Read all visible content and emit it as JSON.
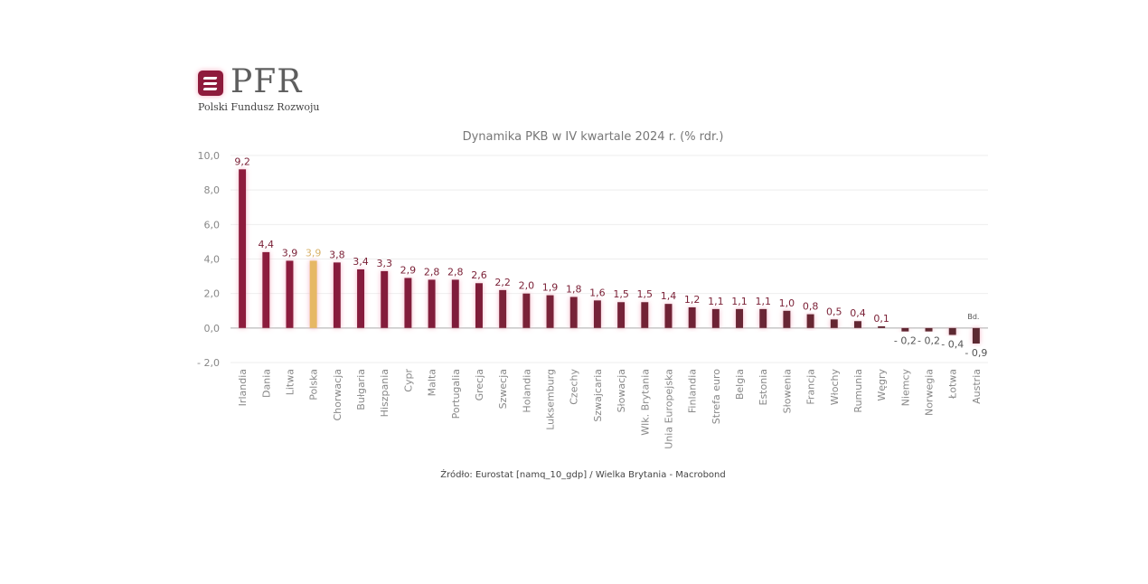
{
  "logo": {
    "name": "PFR",
    "subtitle": "Polski Fundusz Rozwoju"
  },
  "chart_data": {
    "type": "bar",
    "title": "Dynamika PKB w IV kwartale 2024 r. (% rdr.)",
    "xlabel": "",
    "ylabel": "",
    "ylim": [
      -2,
      10
    ],
    "yticks": [
      10,
      8,
      6,
      4,
      2,
      0,
      -2
    ],
    "ytick_labels": [
      "10,0",
      "8,0",
      "6,0",
      "4,0",
      "2,0",
      "0,0",
      "- 2,0"
    ],
    "grid": true,
    "categories": [
      "Irlandia",
      "Dania",
      "Litwa",
      "Polska",
      "Chorwacja",
      "Bułgaria",
      "Hiszpania",
      "Cypr",
      "Malta",
      "Portugalia",
      "Grecja",
      "Szwecja",
      "Holandia",
      "Luksemburg",
      "Czechy",
      "Szwajcaria",
      "Słowacja",
      "Wlk. Brytania",
      "Unia Europejska",
      "Finlandia",
      "Strefa euro",
      "Belgia",
      "Estonia",
      "Słowenia",
      "Francja",
      "Włochy",
      "Rumunia",
      "Węgry",
      "Niemcy",
      "Norwegia",
      "Łotwa",
      "Austria"
    ],
    "values": [
      9.2,
      4.4,
      3.9,
      3.9,
      3.8,
      3.4,
      3.3,
      2.9,
      2.8,
      2.8,
      2.6,
      2.2,
      2.0,
      1.9,
      1.8,
      1.6,
      1.5,
      1.5,
      1.4,
      1.2,
      1.1,
      1.1,
      1.1,
      1.0,
      0.8,
      0.5,
      0.4,
      0.1,
      -0.2,
      -0.2,
      -0.4,
      -0.9
    ],
    "value_labels": [
      "9,2",
      "4,4",
      "3,9",
      "3,9",
      "3,8",
      "3,4",
      "3,3",
      "2,9",
      "2,8",
      "2,8",
      "2,6",
      "2,2",
      "2,0",
      "1,9",
      "1,8",
      "1,6",
      "1,5",
      "1,5",
      "1,4",
      "1,2",
      "1,1",
      "1,1",
      "1,1",
      "1,0",
      "0,8",
      "0,5",
      "0,4",
      "0,1",
      "- 0,2",
      "- 0,2",
      "- 0,4",
      "- 0,9"
    ],
    "highlight": "Polska",
    "annotation": "Bd.",
    "colors": {
      "start": "#8e1a3e",
      "end": "#5b2a30",
      "highlight": "#e6b865",
      "label": "#7a1f35",
      "highlight_label": "#d9b36a"
    }
  },
  "source": "Źródło: Eurostat [namq_10_gdp] / Wielka Brytania - Macrobond"
}
